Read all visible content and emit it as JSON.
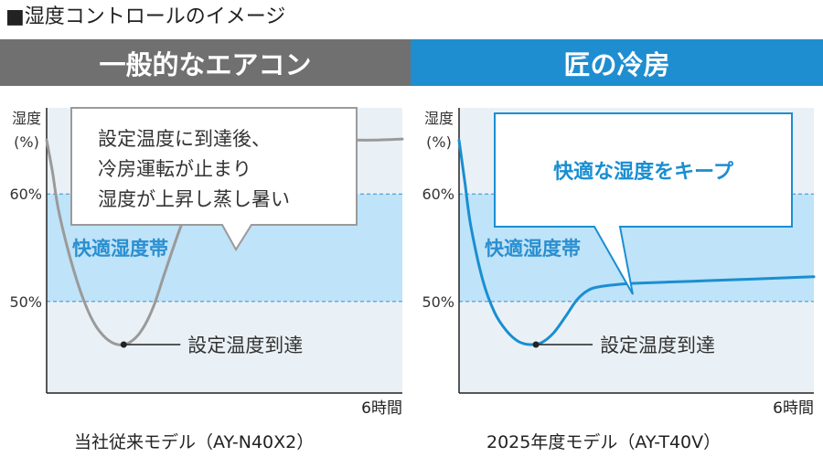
{
  "page_title": "■湿度コントロールのイメージ",
  "colors": {
    "header_left": "#707070",
    "header_right": "#1f8ed0",
    "comfort_band": "#bfe3f8",
    "plot_bg": "#eaf1f6",
    "curve_left": "#9a9a9a",
    "curve_right": "#1a8ed2",
    "dashed_line": "#3a8fc8",
    "band_label": "#2a8fd0"
  },
  "chart_data": [
    {
      "type": "line",
      "header": "一般的なエアコン",
      "ylabel": [
        "湿度",
        "(%)"
      ],
      "xlabel": "6時間",
      "yticks": [
        "60%",
        "50%"
      ],
      "ytick_values": [
        60,
        50
      ],
      "ylim": [
        41.5,
        68
      ],
      "xlim": [
        0,
        6
      ],
      "band": {
        "label": "快適湿度帯",
        "range": [
          50,
          60
        ]
      },
      "series": [
        {
          "x": [
            0,
            0.1,
            0.2,
            0.4,
            0.6,
            0.8,
            1.0,
            1.2,
            1.4,
            1.6,
            1.8,
            2.0,
            2.3,
            2.6,
            2.9,
            3.2,
            3.6,
            4.0,
            4.5,
            5.0,
            5.5,
            6.0
          ],
          "values": [
            65,
            62,
            58.5,
            54,
            50.5,
            48,
            46.6,
            46,
            46.2,
            47.3,
            49.5,
            52.8,
            57.5,
            61,
            63.3,
            64.4,
            64.7,
            64.8,
            64.9,
            65,
            65,
            65.1
          ]
        }
      ],
      "marker": {
        "x": 1.3,
        "y": 46,
        "label": "設定温度到達"
      },
      "callout": [
        "設定温度に到達後、",
        "冷房運転が止まり",
        "湿度が上昇し蒸し暑い"
      ],
      "caption": "当社従来モデル（AY-N40X2）"
    },
    {
      "type": "line",
      "header": "匠の冷房",
      "ylabel": [
        "湿度",
        "(%)"
      ],
      "xlabel": "6時間",
      "yticks": [
        "60%",
        "50%"
      ],
      "ytick_values": [
        60,
        50
      ],
      "ylim": [
        41.5,
        68
      ],
      "xlim": [
        0,
        6
      ],
      "band": {
        "label": "快適湿度帯",
        "range": [
          50,
          60
        ]
      },
      "series": [
        {
          "x": [
            0,
            0.1,
            0.2,
            0.4,
            0.6,
            0.8,
            1.0,
            1.2,
            1.4,
            1.6,
            1.8,
            2.0,
            2.2,
            2.4,
            2.7,
            3.0,
            3.5,
            4.0,
            4.5,
            5.0,
            5.5,
            6.0
          ],
          "values": [
            65,
            61,
            57,
            52,
            49,
            47.3,
            46.3,
            46,
            46.2,
            47.1,
            48.6,
            50.2,
            51.1,
            51.4,
            51.6,
            51.7,
            51.8,
            51.9,
            52,
            52.1,
            52.2,
            52.3
          ]
        }
      ],
      "marker": {
        "x": 1.3,
        "y": 46,
        "label": "設定温度到達"
      },
      "callout": [
        "快適な湿度をキープ"
      ],
      "caption": "2025年度モデル（AY-T40V）"
    }
  ]
}
